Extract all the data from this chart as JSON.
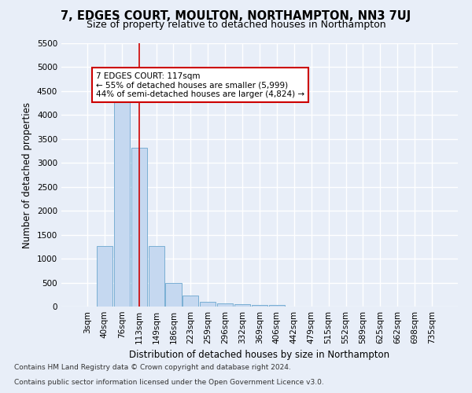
{
  "title": "7, EDGES COURT, MOULTON, NORTHAMPTON, NN3 7UJ",
  "subtitle": "Size of property relative to detached houses in Northampton",
  "xlabel": "Distribution of detached houses by size in Northampton",
  "ylabel": "Number of detached properties",
  "footer_line1": "Contains HM Land Registry data © Crown copyright and database right 2024.",
  "footer_line2": "Contains public sector information licensed under the Open Government Licence v3.0.",
  "categories": [
    "3sqm",
    "40sqm",
    "76sqm",
    "113sqm",
    "149sqm",
    "186sqm",
    "223sqm",
    "259sqm",
    "296sqm",
    "332sqm",
    "369sqm",
    "406sqm",
    "442sqm",
    "479sqm",
    "515sqm",
    "552sqm",
    "589sqm",
    "625sqm",
    "662sqm",
    "698sqm",
    "735sqm"
  ],
  "values": [
    0,
    1260,
    4360,
    3310,
    1260,
    490,
    225,
    95,
    65,
    55,
    40,
    40,
    0,
    0,
    0,
    0,
    0,
    0,
    0,
    0,
    0
  ],
  "bar_color": "#c5d8f0",
  "bar_edge_color": "#7aafd4",
  "highlight_x_label": "113sqm",
  "highlight_line_color": "#cc0000",
  "annotation_text": "7 EDGES COURT: 117sqm\n← 55% of detached houses are smaller (5,999)\n44% of semi-detached houses are larger (4,824) →",
  "annotation_box_facecolor": "#ffffff",
  "annotation_box_edgecolor": "#cc0000",
  "ylim": [
    0,
    5500
  ],
  "yticks": [
    0,
    500,
    1000,
    1500,
    2000,
    2500,
    3000,
    3500,
    4000,
    4500,
    5000,
    5500
  ],
  "background_color": "#e8eef8",
  "grid_color": "#ffffff",
  "title_fontsize": 10.5,
  "subtitle_fontsize": 9,
  "axis_label_fontsize": 8.5,
  "tick_fontsize": 7.5,
  "footer_fontsize": 6.5
}
